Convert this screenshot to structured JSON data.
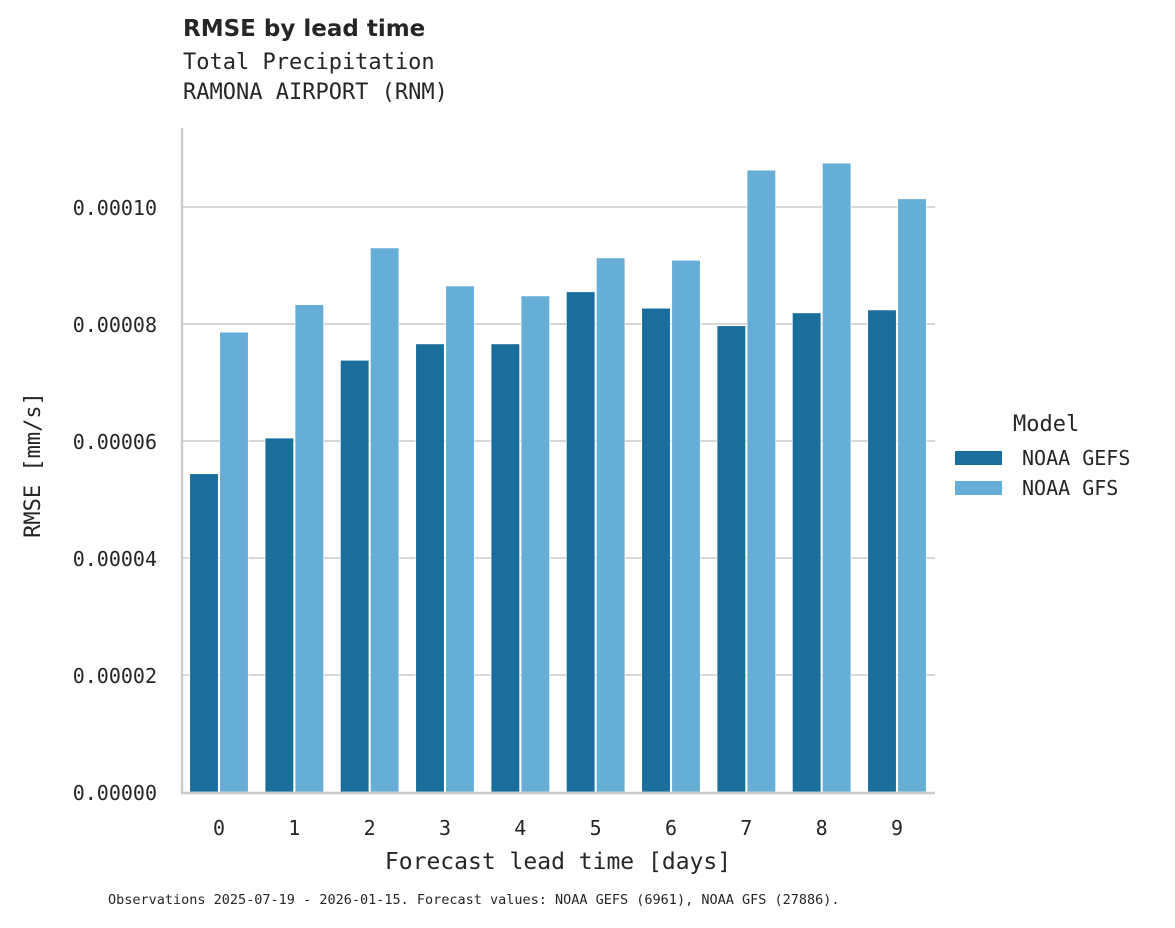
{
  "header": {
    "title": "RMSE by lead time",
    "subtitle_line1": "Total Precipitation",
    "subtitle_line2": "RAMONA AIRPORT (RNM)"
  },
  "legend": {
    "title": "Model",
    "items": [
      {
        "label": "NOAA GEFS",
        "color": "#1a6e9c"
      },
      {
        "label": "NOAA GFS",
        "color": "#67aed6"
      }
    ]
  },
  "footnote": "Observations 2025-07-19 - 2026-01-15. Forecast values: NOAA GEFS (6961), NOAA GFS (27886).",
  "chart_data": {
    "type": "bar",
    "title": "RMSE by lead time",
    "subtitle": "Total Precipitation — RAMONA AIRPORT (RNM)",
    "xlabel": "Forecast lead time [days]",
    "ylabel": "RMSE [mm/s]",
    "categories": [
      "0",
      "1",
      "2",
      "3",
      "4",
      "5",
      "6",
      "7",
      "8",
      "9"
    ],
    "series": [
      {
        "name": "NOAA GEFS",
        "color": "#1a6e9c",
        "values": [
          5.44e-05,
          6.05e-05,
          7.38e-05,
          7.66e-05,
          7.66e-05,
          8.55e-05,
          8.27e-05,
          7.97e-05,
          8.19e-05,
          8.24e-05
        ]
      },
      {
        "name": "NOAA GFS",
        "color": "#67aed6",
        "values": [
          7.86e-05,
          8.33e-05,
          9.3e-05,
          8.65e-05,
          8.48e-05,
          9.13e-05,
          9.09e-05,
          0.0001063,
          0.0001075,
          0.0001014
        ]
      }
    ],
    "yticks": [
      "0.00000",
      "0.00002",
      "0.00004",
      "0.00006",
      "0.00008",
      "0.00010"
    ],
    "ytick_values": [
      0,
      2e-05,
      4e-05,
      6e-05,
      8e-05,
      0.0001
    ],
    "ylim": [
      0,
      0.000113
    ],
    "grid": "y",
    "legend_position": "right"
  }
}
